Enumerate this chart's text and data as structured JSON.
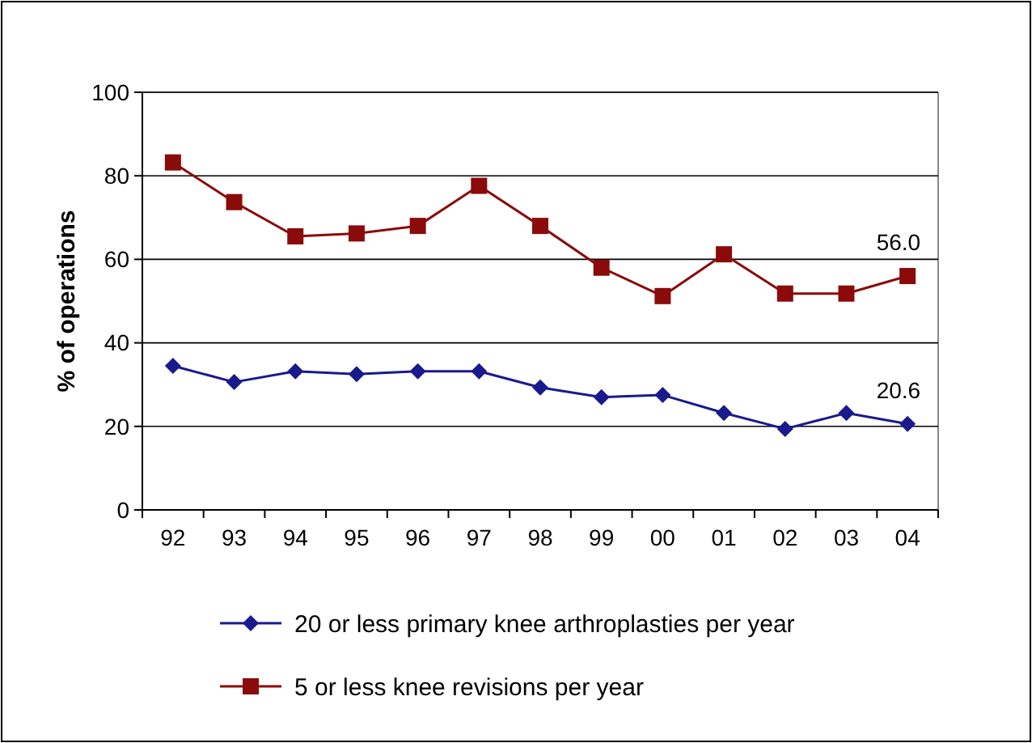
{
  "chart_data": {
    "type": "line",
    "ylabel": "% of operations",
    "categories": [
      "92",
      "93",
      "94",
      "95",
      "96",
      "97",
      "98",
      "99",
      "00",
      "01",
      "02",
      "03",
      "04"
    ],
    "series": [
      {
        "name": "20 or less primary knee arthroplasties per year",
        "color": "#1a1a8c",
        "marker": "diamond",
        "values": [
          34.5,
          30.6,
          33.2,
          32.5,
          33.2,
          33.2,
          29.3,
          27.0,
          27.5,
          23.2,
          19.4,
          23.2,
          20.6
        ],
        "value_labels": [
          null,
          null,
          null,
          null,
          null,
          null,
          null,
          null,
          null,
          null,
          null,
          null,
          "20.6"
        ]
      },
      {
        "name": "5 or less knee revisions per year",
        "color": "#8b0a0a",
        "marker": "square",
        "values": [
          83.2,
          73.7,
          65.5,
          66.2,
          68.0,
          77.6,
          68.0,
          58.0,
          51.2,
          61.2,
          51.8,
          51.8,
          56.0
        ],
        "value_labels": [
          null,
          null,
          null,
          null,
          null,
          null,
          null,
          null,
          null,
          null,
          null,
          null,
          "56.0"
        ]
      }
    ],
    "ylim": [
      0,
      100
    ],
    "yticks": [
      0,
      20,
      40,
      60,
      80,
      100
    ],
    "grid": "y",
    "legend": "bottom"
  }
}
